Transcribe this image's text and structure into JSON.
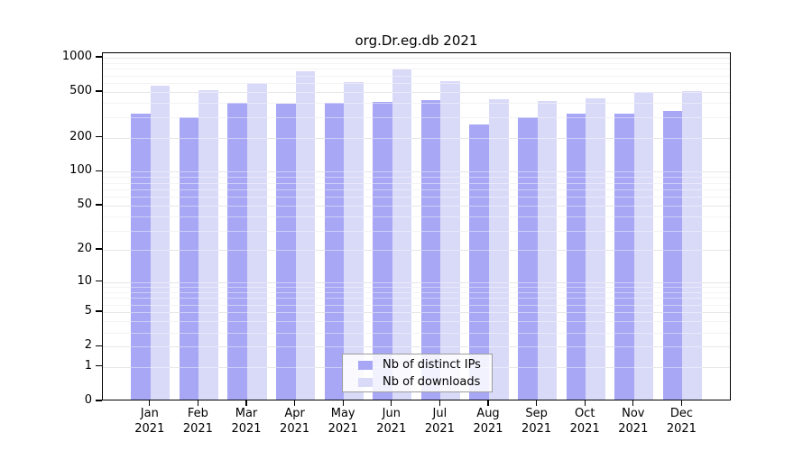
{
  "figure": {
    "title": "org.Dr.eg.db 2021",
    "background_color": "#ffffff"
  },
  "chart_data": {
    "type": "bar",
    "title": "org.Dr.eg.db 2021",
    "scale": "log1p (y position proportional to log10(1+value), 0 at baseline)",
    "months": [
      "Jan",
      "Feb",
      "Mar",
      "Apr",
      "May",
      "Jun",
      "Jul",
      "Aug",
      "Sep",
      "Oct",
      "Nov",
      "Dec"
    ],
    "year_label": "2021",
    "categories": [
      "Jan 2021",
      "Feb 2021",
      "Mar 2021",
      "Apr 2021",
      "May 2021",
      "Jun 2021",
      "Jul 2021",
      "Aug 2021",
      "Sep 2021",
      "Oct 2021",
      "Nov 2021",
      "Dec 2021"
    ],
    "series": [
      {
        "name": "Nb of distinct IPs",
        "color": "#a7a7f5",
        "values": [
          310,
          290,
          390,
          380,
          390,
          395,
          413,
          252,
          293,
          315,
          315,
          332
        ]
      },
      {
        "name": "Nb of downloads",
        "color": "#d9d9f8",
        "values": [
          550,
          500,
          585,
          740,
          595,
          765,
          598,
          415,
          403,
          428,
          486,
          495
        ]
      }
    ],
    "y_ticks": [
      0,
      1,
      2,
      5,
      10,
      20,
      50,
      100,
      200,
      500,
      1000
    ],
    "y_minor_gridlines": [
      3,
      4,
      6,
      7,
      8,
      9,
      30,
      40,
      60,
      70,
      80,
      90,
      300,
      400,
      600,
      700,
      800,
      900
    ],
    "ylim": [
      0,
      1000
    ],
    "xlabel": "",
    "ylabel": "",
    "grid": true,
    "legend_position": "inside-bottom-center",
    "colors": {
      "major_grid": "#d4d4d4",
      "minor_grid": "#eaeaea",
      "axis": "#000000"
    }
  }
}
